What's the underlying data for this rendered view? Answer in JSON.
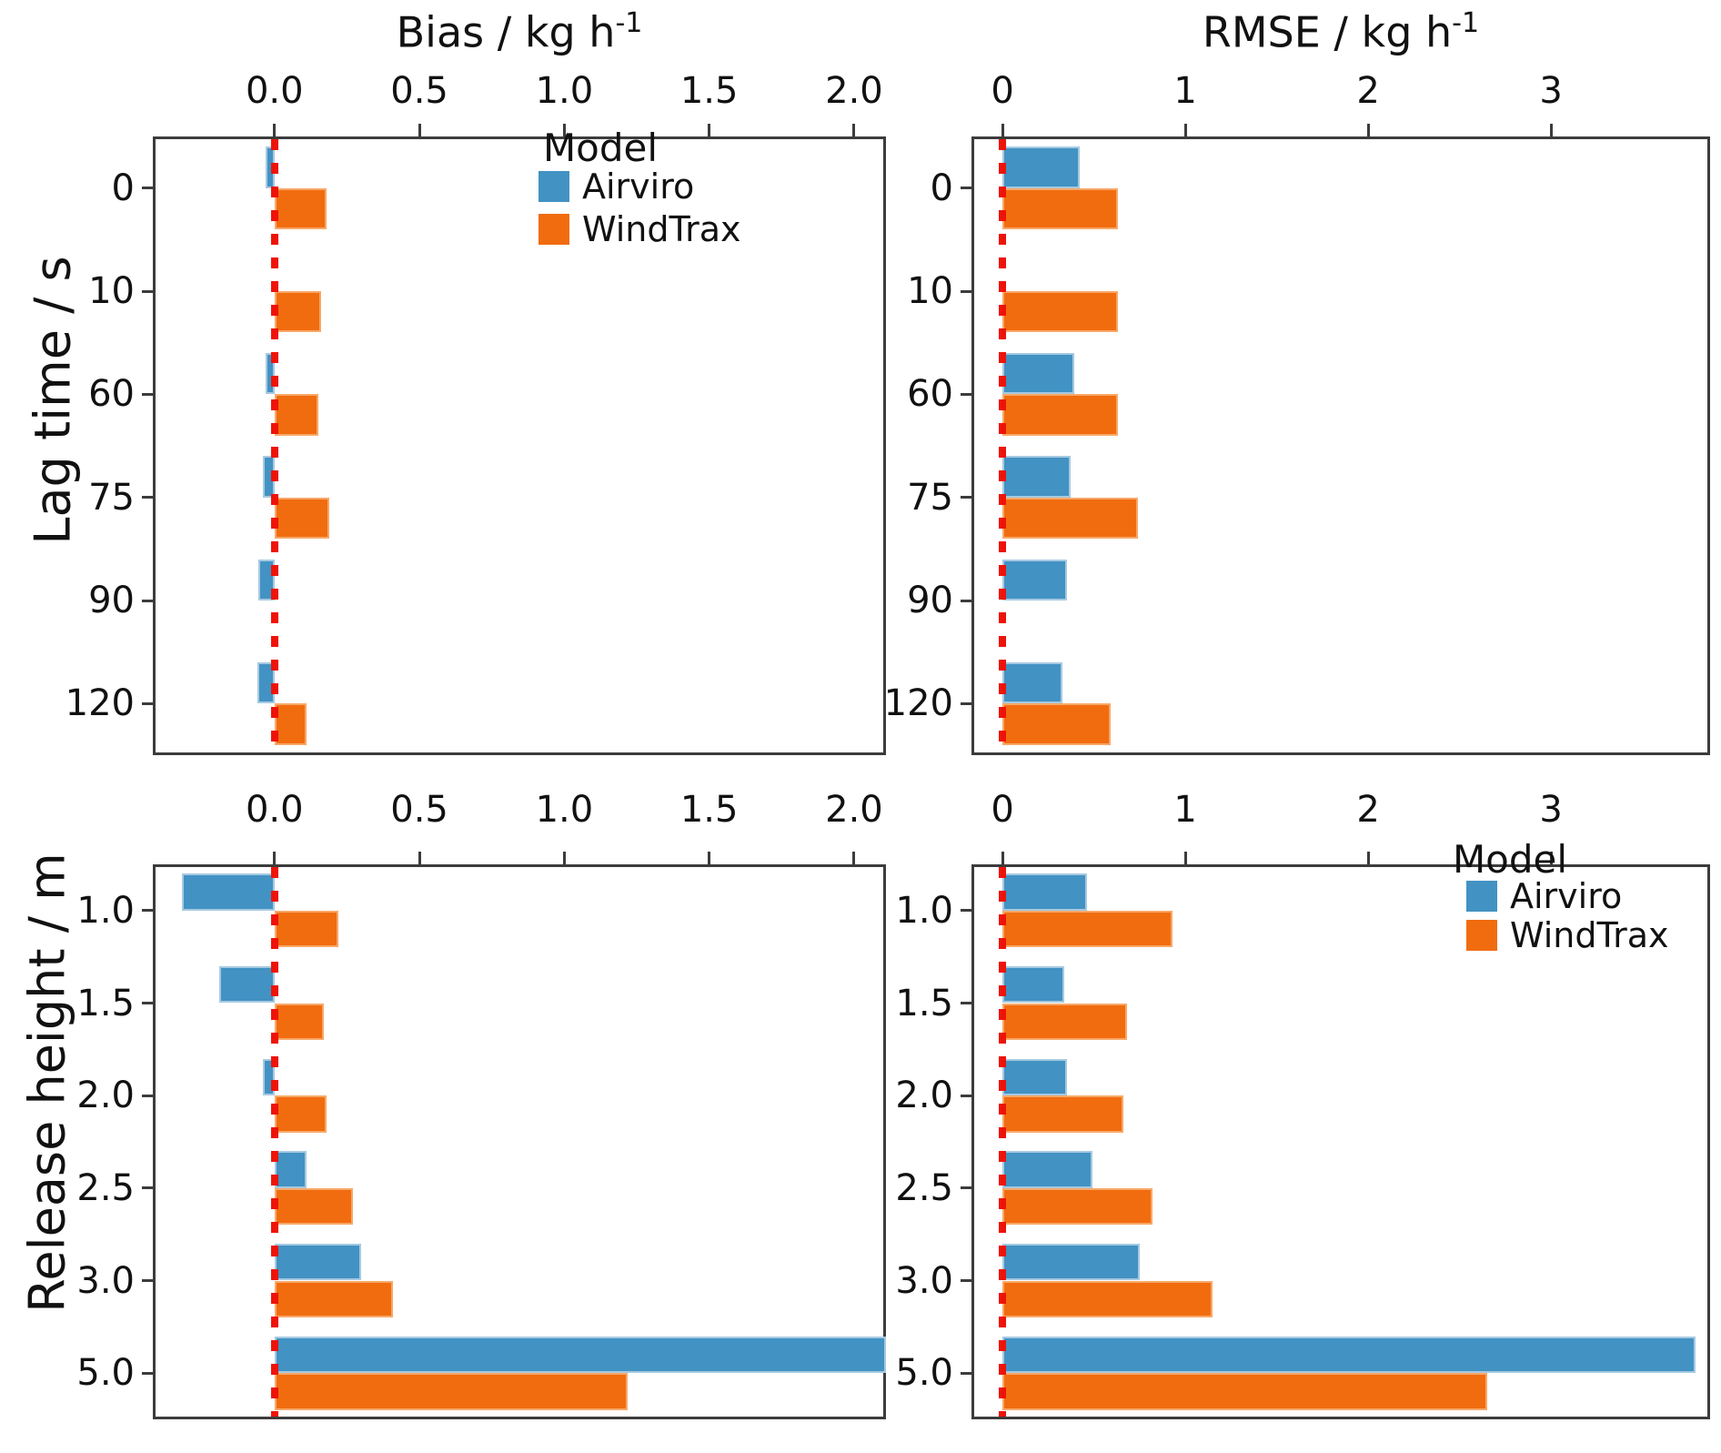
{
  "figure": {
    "background": "#ffffff",
    "row_labels": [
      "Lag time / s",
      "Release height / m"
    ],
    "col_titles": [
      {
        "base": "Bias / kg h",
        "sup": "-1"
      },
      {
        "base": "RMSE / kg h",
        "sup": "-1"
      }
    ]
  },
  "colors": {
    "airviro": "#4292c3",
    "airviro_edge": "#a6c9e1",
    "windtrax": "#f16c0f",
    "windtrax_edge": "#f7a868",
    "zero_line": "#ee1309",
    "spine": "#3c3c3c",
    "text": "#111111"
  },
  "legend": {
    "title": "Model",
    "items": [
      {
        "label": "Airviro",
        "color_key": "airviro"
      },
      {
        "label": "WindTrax",
        "color_key": "windtrax"
      }
    ]
  },
  "chart_data": [
    {
      "id": "bias-vs-lag-time",
      "type": "bar",
      "orientation": "horizontal",
      "row": 0,
      "col": 0,
      "title": "Bias / kg h-1",
      "ylabel": "Lag time / s",
      "categories": [
        "0",
        "10",
        "60",
        "75",
        "90",
        "120"
      ],
      "series": [
        {
          "name": "Airviro",
          "values": [
            -0.03,
            0,
            -0.03,
            -0.04,
            -0.055,
            -0.06
          ]
        },
        {
          "name": "WindTrax",
          "values": [
            0.18,
            0.16,
            0.15,
            0.19,
            0,
            0.11
          ]
        }
      ],
      "xlim": [
        -0.42,
        2.11
      ],
      "xticks": [
        0,
        0.5,
        1,
        1.5,
        2
      ],
      "xtick_labels": [
        "0.0",
        "0.5",
        "1.0",
        "1.5",
        "2.0"
      ],
      "zero_reference_line": 0,
      "has_legend": true,
      "note": "zero values rendered as no bar"
    },
    {
      "id": "rmse-vs-lag-time",
      "type": "bar",
      "orientation": "horizontal",
      "row": 0,
      "col": 1,
      "title": "RMSE / kg h-1",
      "ylabel": "Lag time / s",
      "categories": [
        "0",
        "10",
        "60",
        "75",
        "90",
        "120"
      ],
      "series": [
        {
          "name": "Airviro",
          "values": [
            0.42,
            0,
            0.39,
            0.37,
            0.35,
            0.33
          ]
        },
        {
          "name": "WindTrax",
          "values": [
            0.63,
            0.63,
            0.63,
            0.74,
            0,
            0.59
          ]
        }
      ],
      "xlim": [
        -0.17,
        3.87
      ],
      "xticks": [
        0,
        1,
        2,
        3
      ],
      "xtick_labels": [
        "0",
        "1",
        "2",
        "3"
      ],
      "zero_reference_line": 0,
      "has_legend": false,
      "note": "zero values rendered as no bar"
    },
    {
      "id": "bias-vs-release-height",
      "type": "bar",
      "orientation": "horizontal",
      "row": 1,
      "col": 0,
      "title": "Bias / kg h-1",
      "ylabel": "Release height / m",
      "categories": [
        "1.0",
        "1.5",
        "2.0",
        "2.5",
        "3.0",
        "5.0"
      ],
      "series": [
        {
          "name": "Airviro",
          "values": [
            -0.32,
            -0.19,
            -0.04,
            0.11,
            0.3,
            2.11
          ]
        },
        {
          "name": "WindTrax",
          "values": [
            0.22,
            0.17,
            0.18,
            0.27,
            0.41,
            1.22
          ]
        }
      ],
      "xlim": [
        -0.42,
        2.11
      ],
      "xticks": [
        0,
        0.5,
        1,
        1.5,
        2
      ],
      "xtick_labels": [
        "0.0",
        "0.5",
        "1.0",
        "1.5",
        "2.0"
      ],
      "zero_reference_line": 0,
      "has_legend": false,
      "note": "Airviro bar at 5.0 m is clipped at right axis limit"
    },
    {
      "id": "rmse-vs-release-height",
      "type": "bar",
      "orientation": "horizontal",
      "row": 1,
      "col": 1,
      "title": "RMSE / kg h-1",
      "ylabel": "Release height / m",
      "categories": [
        "1.0",
        "1.5",
        "2.0",
        "2.5",
        "3.0",
        "5.0"
      ],
      "series": [
        {
          "name": "Airviro",
          "values": [
            0.46,
            0.34,
            0.35,
            0.49,
            0.75,
            3.79
          ]
        },
        {
          "name": "WindTrax",
          "values": [
            0.93,
            0.68,
            0.66,
            0.82,
            1.15,
            2.65
          ]
        }
      ],
      "xlim": [
        -0.17,
        3.87
      ],
      "xticks": [
        0,
        1,
        2,
        3
      ],
      "xtick_labels": [
        "0",
        "1",
        "2",
        "3"
      ],
      "zero_reference_line": 0,
      "has_legend": true,
      "note": "zero values rendered as no bar"
    }
  ]
}
